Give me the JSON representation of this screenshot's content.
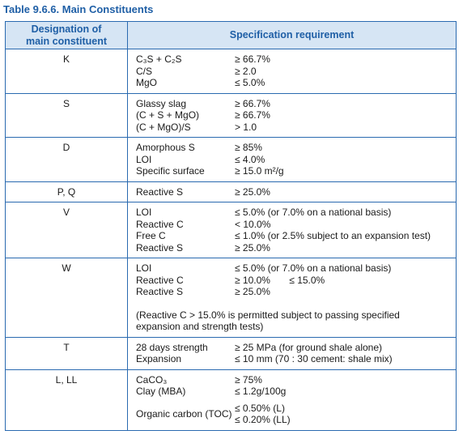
{
  "title": "Table 9.6.6. Main Constituents",
  "header": {
    "designation": "Designation of\nmain constituent",
    "requirement": "Specification requirement"
  },
  "rows": [
    {
      "designation": "K",
      "items": [
        {
          "property": "C₃S + C₂S",
          "requirement": "≥ 66.7%"
        },
        {
          "property": "C/S",
          "requirement": "≥ 2.0"
        },
        {
          "property": "MgO",
          "requirement": "≤ 5.0%"
        }
      ]
    },
    {
      "designation": "S",
      "items": [
        {
          "property": "Glassy slag",
          "requirement": "≥ 66.7%"
        },
        {
          "property": "(C + S + MgO)",
          "requirement": "≥ 66.7%"
        },
        {
          "property": "(C + MgO)/S",
          "requirement": "> 1.0"
        }
      ]
    },
    {
      "designation": "D",
      "items": [
        {
          "property": "Amorphous S",
          "requirement": "≥ 85%"
        },
        {
          "property": "LOI",
          "requirement": "≤ 4.0%"
        },
        {
          "property": "Specific surface",
          "requirement": "≥ 15.0 m²/g"
        }
      ]
    },
    {
      "designation": "P, Q",
      "items": [
        {
          "property": "Reactive S",
          "requirement": "≥ 25.0%"
        }
      ]
    },
    {
      "designation": "V",
      "items": [
        {
          "property": "LOI",
          "requirement": "≤ 5.0% (or 7.0% on a national basis)"
        },
        {
          "property": "Reactive C",
          "requirement": "< 10.0%"
        },
        {
          "property": "Free C",
          "requirement": "≤ 1.0% (or 2.5% subject to an expansion test)"
        },
        {
          "property": "Reactive S",
          "requirement": "≥ 25.0%"
        }
      ]
    },
    {
      "designation": "W",
      "items": [
        {
          "property": "LOI",
          "requirement": "≤ 5.0% (or 7.0% on a national basis)"
        },
        {
          "property": "Reactive C",
          "requirement": "≥ 10.0%       ≤ 15.0%"
        },
        {
          "property": "Reactive S",
          "requirement": "≥ 25.0%"
        }
      ],
      "note": "(Reactive C > 15.0% is permitted subject to passing specified expansion and strength tests)"
    },
    {
      "designation": "T",
      "items": [
        {
          "property": "28 days strength",
          "requirement": "≥ 25 MPa (for ground shale alone)"
        },
        {
          "property": "Expansion",
          "requirement": "≤ 10 mm (70 : 30 cement: shale mix)"
        }
      ]
    },
    {
      "designation": "L, LL",
      "items": [
        {
          "property": "CaCO₃",
          "requirement": "≥ 75%"
        },
        {
          "property": "Clay (MBA)",
          "requirement": "≤ 1.2g/100g"
        },
        {
          "property": "Organic carbon (TOC)",
          "requirement": [
            "≤ 0.50% (L)",
            "≤ 0.20% (LL)"
          ]
        }
      ]
    }
  ]
}
